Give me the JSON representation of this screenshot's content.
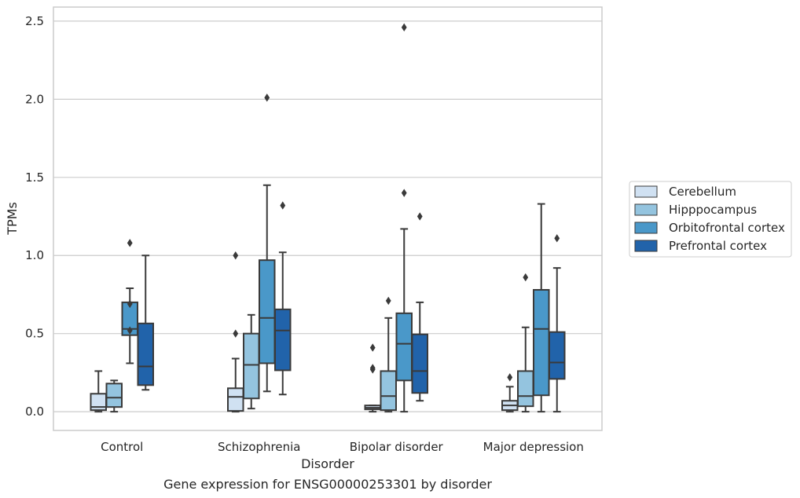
{
  "caption": "Gene expression for ENSG00000253301 by disorder",
  "chart_data": {
    "type": "box",
    "title": "",
    "xlabel": "Disorder",
    "ylabel": "TPMs",
    "ylim": [
      -0.12,
      2.59
    ],
    "yticks": [
      0.0,
      0.5,
      1.0,
      1.5,
      2.0,
      2.5
    ],
    "ytick_labels": [
      "0.0",
      "0.5",
      "1.0",
      "1.5",
      "2.0",
      "2.5"
    ],
    "grid": "horizontal",
    "legend_position": "center-right-outside",
    "categories": [
      "Control",
      "Schizophrenia",
      "Bipolar disorder",
      "Major depression"
    ],
    "series": [
      {
        "name": "Cerebellum",
        "color": "#d0e1f2",
        "boxes": [
          {
            "whisker_low": 0.0,
            "q1": 0.01,
            "median": 0.03,
            "q3": 0.115,
            "whisker_high": 0.26,
            "outliers": []
          },
          {
            "whisker_low": 0.0,
            "q1": 0.005,
            "median": 0.095,
            "q3": 0.15,
            "whisker_high": 0.34,
            "outliers": [
              0.5,
              1.0
            ]
          },
          {
            "whisker_low": 0.0,
            "q1": 0.015,
            "median": 0.025,
            "q3": 0.04,
            "whisker_high": 0.04,
            "outliers": [
              0.27,
              0.28,
              0.41
            ]
          },
          {
            "whisker_low": 0.0,
            "q1": 0.01,
            "median": 0.04,
            "q3": 0.07,
            "whisker_high": 0.16,
            "outliers": [
              0.22
            ]
          }
        ]
      },
      {
        "name": "Hipppocampus",
        "color": "#94c4df",
        "boxes": [
          {
            "whisker_low": 0.0,
            "q1": 0.03,
            "median": 0.09,
            "q3": 0.18,
            "whisker_high": 0.2,
            "outliers": []
          },
          {
            "whisker_low": 0.02,
            "q1": 0.085,
            "median": 0.3,
            "q3": 0.5,
            "whisker_high": 0.62,
            "outliers": []
          },
          {
            "whisker_low": 0.0,
            "q1": 0.01,
            "median": 0.1,
            "q3": 0.26,
            "whisker_high": 0.6,
            "outliers": [
              0.71
            ]
          },
          {
            "whisker_low": 0.0,
            "q1": 0.035,
            "median": 0.1,
            "q3": 0.26,
            "whisker_high": 0.54,
            "outliers": [
              0.86
            ]
          }
        ]
      },
      {
        "name": "Orbitofrontal cortex",
        "color": "#4a98c9",
        "boxes": [
          {
            "whisker_low": 0.31,
            "q1": 0.49,
            "median": 0.53,
            "q3": 0.7,
            "whisker_high": 0.79,
            "outliers": [
              0.52,
              0.69,
              1.08
            ]
          },
          {
            "whisker_low": 0.13,
            "q1": 0.31,
            "median": 0.6,
            "q3": 0.97,
            "whisker_high": 1.45,
            "outliers": [
              2.01
            ]
          },
          {
            "whisker_low": 0.0,
            "q1": 0.2,
            "median": 0.435,
            "q3": 0.63,
            "whisker_high": 1.17,
            "outliers": [
              1.4,
              2.46
            ]
          },
          {
            "whisker_low": 0.0,
            "q1": 0.105,
            "median": 0.53,
            "q3": 0.78,
            "whisker_high": 1.33,
            "outliers": []
          }
        ]
      },
      {
        "name": "Prefrontal cortex",
        "color": "#2163aa",
        "boxes": [
          {
            "whisker_low": 0.14,
            "q1": 0.17,
            "median": 0.29,
            "q3": 0.565,
            "whisker_high": 1.0,
            "outliers": []
          },
          {
            "whisker_low": 0.11,
            "q1": 0.265,
            "median": 0.52,
            "q3": 0.655,
            "whisker_high": 1.02,
            "outliers": [
              1.32
            ]
          },
          {
            "whisker_low": 0.07,
            "q1": 0.12,
            "median": 0.26,
            "q3": 0.495,
            "whisker_high": 0.7,
            "outliers": [
              1.25
            ]
          },
          {
            "whisker_low": 0.0,
            "q1": 0.21,
            "median": 0.315,
            "q3": 0.51,
            "whisker_high": 0.92,
            "outliers": [
              1.11
            ]
          }
        ]
      }
    ]
  }
}
